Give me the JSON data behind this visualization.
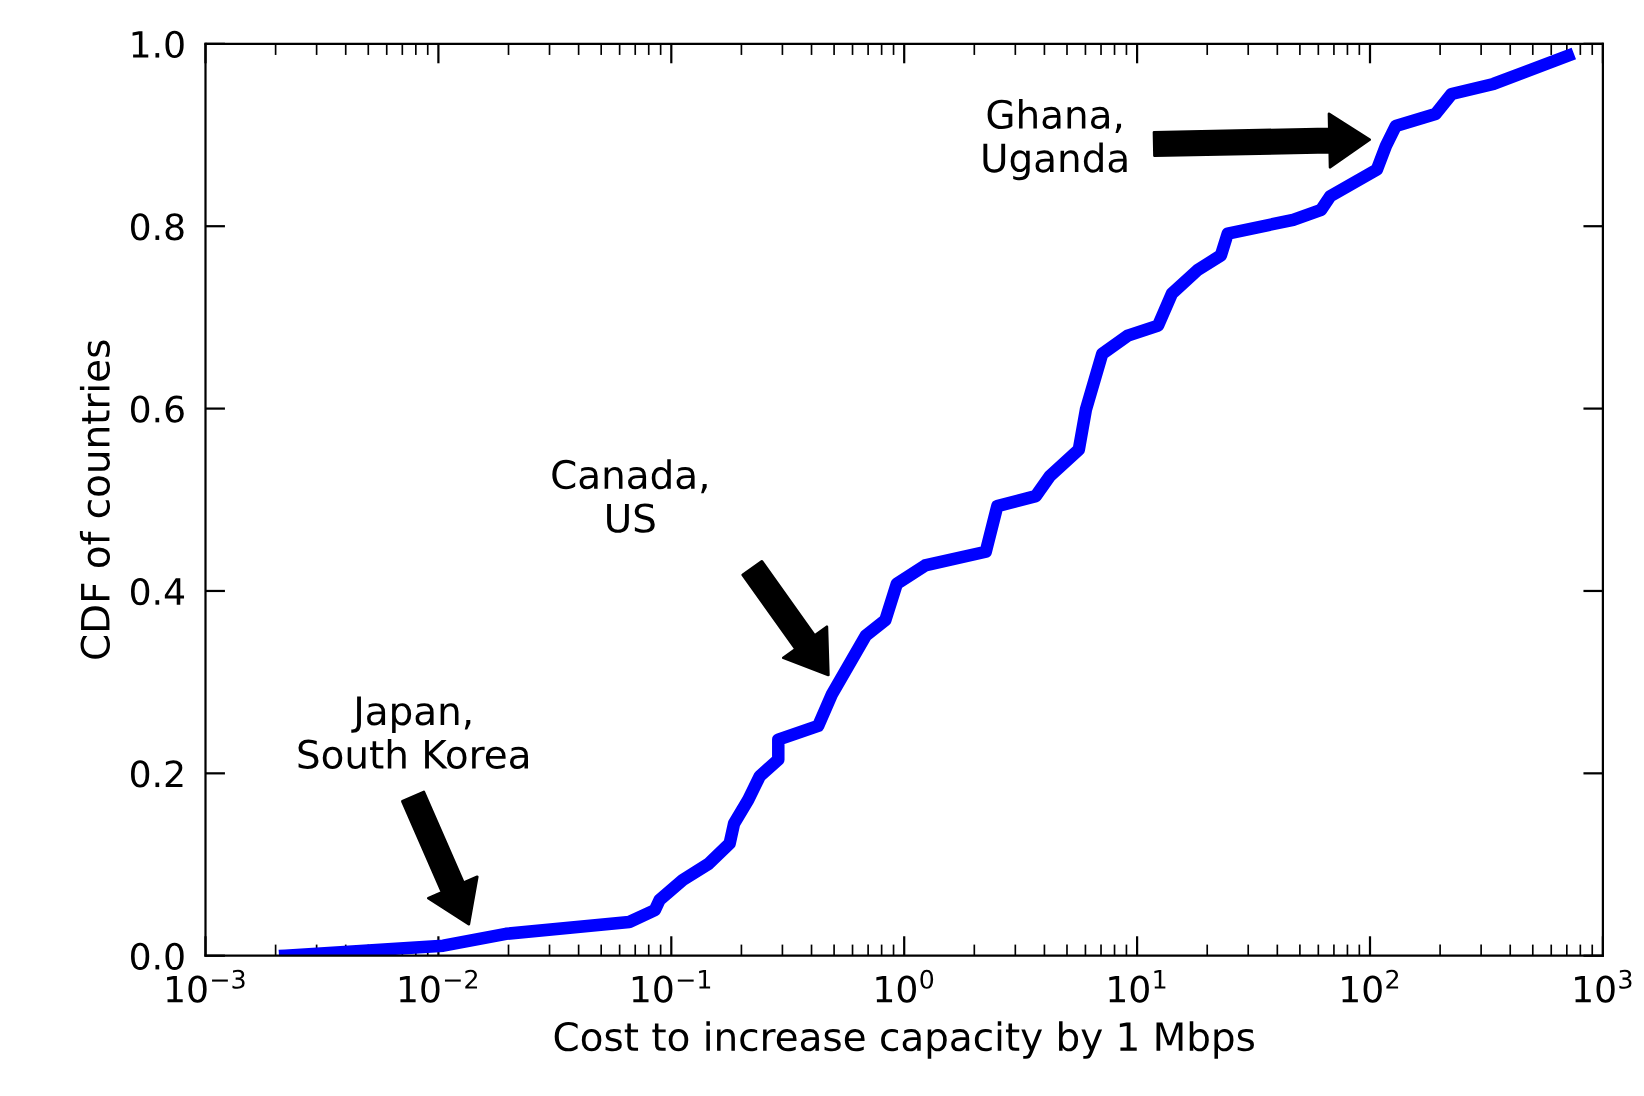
{
  "chart_data": {
    "type": "line",
    "xlabel": "Cost to increase capacity by 1 Mbps",
    "ylabel": "CDF of countries",
    "log": "x",
    "xlim": [
      0.001,
      1000
    ],
    "ylim": [
      0,
      1
    ],
    "xticks": [
      {
        "value": 0.001,
        "label": "10$^{−3}$"
      },
      {
        "value": 0.01,
        "label": "10$^{−2}$"
      },
      {
        "value": 0.1,
        "label": "10$^{−1}$"
      },
      {
        "value": 1,
        "label": "10$^{0}$"
      },
      {
        "value": 10,
        "label": "10$^{1}$"
      },
      {
        "value": 100,
        "label": "10$^{2}$"
      },
      {
        "value": 1000,
        "label": "10$^{3}$"
      }
    ],
    "yticks": [
      {
        "value": 0,
        "label": "0.0"
      },
      {
        "value": 0.2,
        "label": "0.2"
      },
      {
        "value": 0.4,
        "label": "0.4"
      },
      {
        "value": 0.6,
        "label": "0.6"
      },
      {
        "value": 0.8,
        "label": "0.8"
      },
      {
        "value": 1,
        "label": "1.0"
      }
    ],
    "grid": false,
    "legend": false,
    "marker": "none",
    "line_style": "solid",
    "series": [
      {
        "color": "#0000ff",
        "x": [
          0.0022,
          0.0105,
          0.0195,
          0.066,
          0.085,
          0.089,
          0.112,
          0.145,
          0.178,
          0.186,
          0.214,
          0.24,
          0.288,
          0.288,
          0.427,
          0.49,
          0.684,
          0.83,
          0.93,
          1.23,
          2.24,
          2.51,
          3.67,
          4.22,
          5.62,
          6.03,
          7.08,
          9.12,
          12.3,
          14.1,
          18.2,
          22.9,
          24.5,
          46.8,
          61.7,
          67.6,
          107,
          117,
          129,
          191,
          224,
          339,
          708
        ],
        "values": [
          0.0,
          0.011,
          0.024,
          0.037,
          0.05,
          0.061,
          0.083,
          0.101,
          0.123,
          0.145,
          0.171,
          0.197,
          0.215,
          0.237,
          0.252,
          0.287,
          0.351,
          0.368,
          0.408,
          0.428,
          0.443,
          0.493,
          0.504,
          0.526,
          0.555,
          0.599,
          0.66,
          0.68,
          0.691,
          0.726,
          0.752,
          0.768,
          0.792,
          0.807,
          0.818,
          0.833,
          0.862,
          0.888,
          0.91,
          0.923,
          0.945,
          0.956,
          0.987
        ]
      }
    ],
    "annotations": [
      "Japan,\nSouth Korea",
      "Canada,\nUS",
      "Ghana,\nUganda"
    ]
  }
}
